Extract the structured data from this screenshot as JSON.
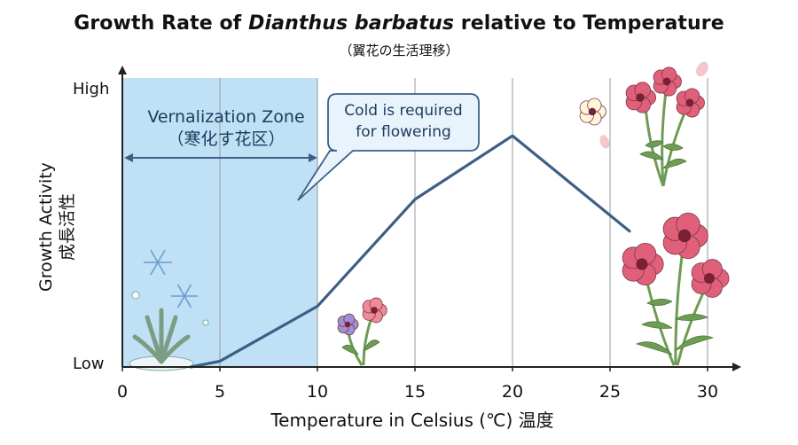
{
  "title_prefix": "Growth Rate of ",
  "title_species": "Dianthus barbatus",
  "title_suffix": " relative to Temperature",
  "subtitle": "（翼花の生活理移）",
  "y_axis": {
    "label_en": "Growth Activity",
    "label_jp": "成長活性",
    "high": "High",
    "low": "Low"
  },
  "x_axis": {
    "label": "Temperature in Celsius (℃)  温度"
  },
  "zone": {
    "title": "Vernalization Zone",
    "subtitle": "（寒化す花区）"
  },
  "callout": {
    "line1": "Cold is required",
    "line2": "for flowering"
  },
  "colors": {
    "zone_fill": "#bfe0f5",
    "curve": "#3d5f86",
    "callout_fill": "#e8f3fb",
    "callout_border": "#3d5f86",
    "flower_pink": "#e0607a",
    "leaf": "#6f9c55"
  },
  "chart_data": {
    "type": "line",
    "title": "Growth Rate of Dianthus barbatus relative to Temperature",
    "xlabel": "Temperature in Celsius (℃)",
    "ylabel": "Growth Activity",
    "xlim": [
      0,
      30
    ],
    "ylim": [
      0,
      1
    ],
    "xticks": [
      0,
      5,
      10,
      15,
      20,
      25,
      30
    ],
    "xtick_labels": [
      "0",
      "5",
      "10",
      "15",
      "20",
      "25",
      "30"
    ],
    "yticks_text": [
      "Low",
      "High"
    ],
    "grid": "vertical",
    "series": [
      {
        "x": [
          3.5,
          5,
          10,
          15,
          20,
          26
        ],
        "y": [
          0.0,
          0.02,
          0.21,
          0.58,
          0.8,
          0.47
        ]
      }
    ],
    "shaded_region": {
      "x_from": 0,
      "x_to": 10
    }
  }
}
